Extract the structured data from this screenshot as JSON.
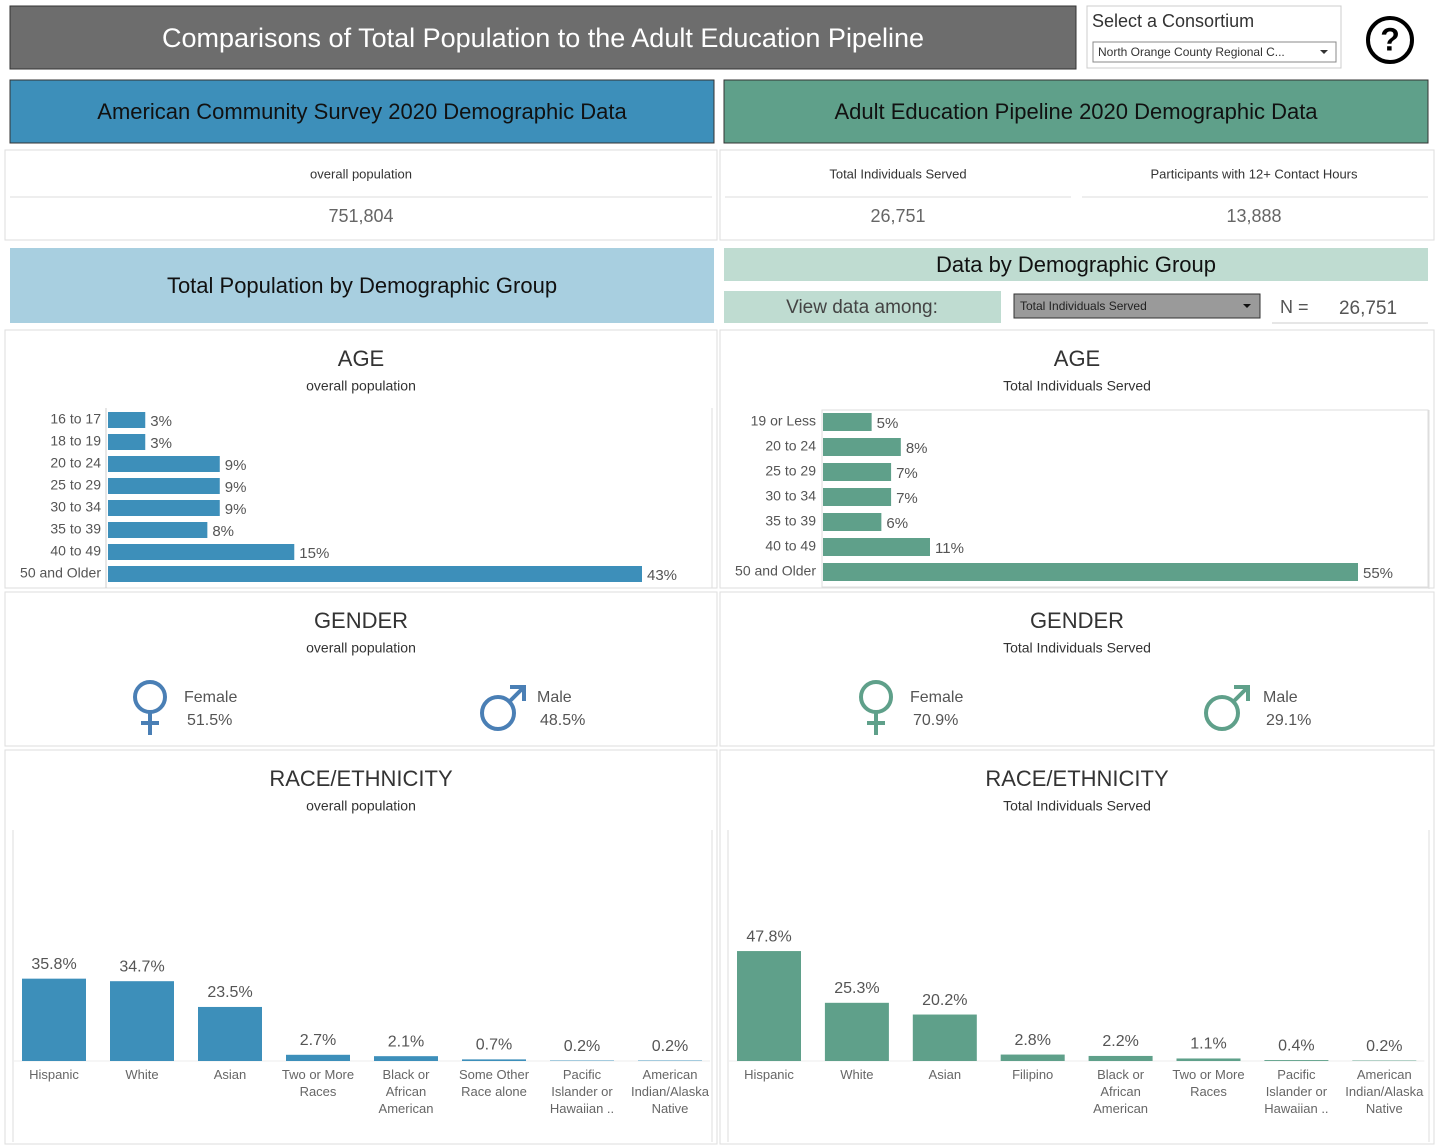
{
  "header": {
    "title": "Comparisons of Total Population to the Adult Education Pipeline",
    "filter_label": "Select a Consortium",
    "filter_value": "North Orange County Regional C...",
    "help": "?"
  },
  "left_header": "American Community Survey 2020 Demographic Data",
  "right_header": "Adult Education Pipeline 2020 Demographic Data",
  "left_kpis": [
    {
      "label": "overall population",
      "value": "751,804"
    }
  ],
  "right_kpis": [
    {
      "label": "Total Individuals Served",
      "value": "26,751"
    },
    {
      "label": "Participants with 12+ Contact Hours",
      "value": "13,888"
    }
  ],
  "left_section": "Total Population by Demographic Group",
  "right_section": {
    "title": "Data by Demographic Group",
    "view_label": "View data among:",
    "view_value": "Total Individuals Served",
    "n_label": "N =",
    "n_value": "26,751"
  },
  "chart_data": [
    {
      "type": "bar",
      "orientation": "horizontal",
      "title": "AGE",
      "subtitle": "overall population",
      "color": "#3d8fba",
      "categories": [
        "16 to 17",
        "18 to 19",
        "20 to 24",
        "25 to 29",
        "30 to 34",
        "35 to 39",
        "40 to 49",
        "50 and Older"
      ],
      "values": [
        3,
        3,
        9,
        9,
        9,
        8,
        15,
        43
      ],
      "value_labels": [
        "3%",
        "3%",
        "9%",
        "9%",
        "9%",
        "8%",
        "15%",
        "43%"
      ]
    },
    {
      "type": "bar",
      "orientation": "horizontal",
      "title": "AGE",
      "subtitle": "Total Individuals Served",
      "color": "#5fa08a",
      "categories": [
        "19 or Less",
        "20 to 24",
        "25 to 29",
        "30 to 34",
        "35 to 39",
        "40 to 49",
        "50 and Older"
      ],
      "values": [
        5,
        8,
        7,
        7,
        6,
        11,
        55
      ],
      "value_labels": [
        "5%",
        "8%",
        "7%",
        "7%",
        "6%",
        "11%",
        "55%"
      ]
    },
    {
      "type": "gender",
      "title": "GENDER",
      "subtitle": "overall population",
      "color": "#4a7fb5",
      "categories": [
        "Female",
        "Male"
      ],
      "values": [
        51.5,
        48.5
      ],
      "value_labels": [
        "51.5%",
        "48.5%"
      ]
    },
    {
      "type": "gender",
      "title": "GENDER",
      "subtitle": "Total Individuals Served",
      "color": "#5fa08a",
      "categories": [
        "Female",
        "Male"
      ],
      "values": [
        70.9,
        29.1
      ],
      "value_labels": [
        "70.9%",
        "29.1%"
      ]
    },
    {
      "type": "bar",
      "orientation": "vertical",
      "title": "RACE/ETHNICITY",
      "subtitle": "overall population",
      "color": "#3d8fba",
      "categories": [
        "Hispanic",
        "White",
        "Asian",
        "Two or More Races",
        "Black or African American",
        "Some Other Race alone",
        "Pacific Islander or Hawaiian ..",
        "American Indian/Alaska Native"
      ],
      "values": [
        35.8,
        34.7,
        23.5,
        2.7,
        2.1,
        0.7,
        0.2,
        0.2
      ],
      "value_labels": [
        "35.8%",
        "34.7%",
        "23.5%",
        "2.7%",
        "2.1%",
        "0.7%",
        "0.2%",
        "0.2%"
      ]
    },
    {
      "type": "bar",
      "orientation": "vertical",
      "title": "RACE/ETHNICITY",
      "subtitle": "Total Individuals Served",
      "color": "#5fa08a",
      "categories": [
        "Hispanic",
        "White",
        "Asian",
        "Filipino",
        "Black or African American",
        "Two or More Races",
        "Pacific Islander or Hawaiian ..",
        "American Indian/Alaska Native"
      ],
      "values": [
        47.8,
        25.3,
        20.2,
        2.8,
        2.2,
        1.1,
        0.4,
        0.2
      ],
      "value_labels": [
        "47.8%",
        "25.3%",
        "20.2%",
        "2.8%",
        "2.2%",
        "1.1%",
        "0.4%",
        "0.2%"
      ]
    }
  ]
}
